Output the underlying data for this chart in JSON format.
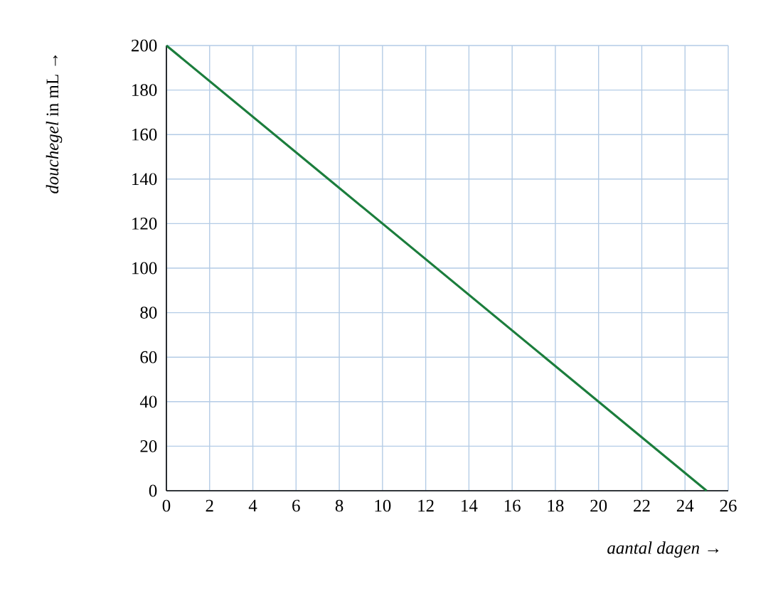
{
  "chart_data": {
    "type": "line",
    "xlabel": "*aantal dagen* →",
    "ylabel": "*douchegel* in mL →",
    "x": [
      0,
      25
    ],
    "series": [
      {
        "color": "#1b7d3c",
        "values": [
          200,
          0
        ]
      }
    ],
    "xlim": [
      0,
      26
    ],
    "xticks": [
      0,
      2,
      4,
      6,
      8,
      10,
      12,
      14,
      16,
      18,
      20,
      22,
      24,
      26
    ],
    "ylim": [
      0,
      200
    ],
    "yticks": [
      0,
      20,
      40,
      60,
      80,
      100,
      120,
      140,
      160,
      180,
      200
    ],
    "grid": true
  }
}
